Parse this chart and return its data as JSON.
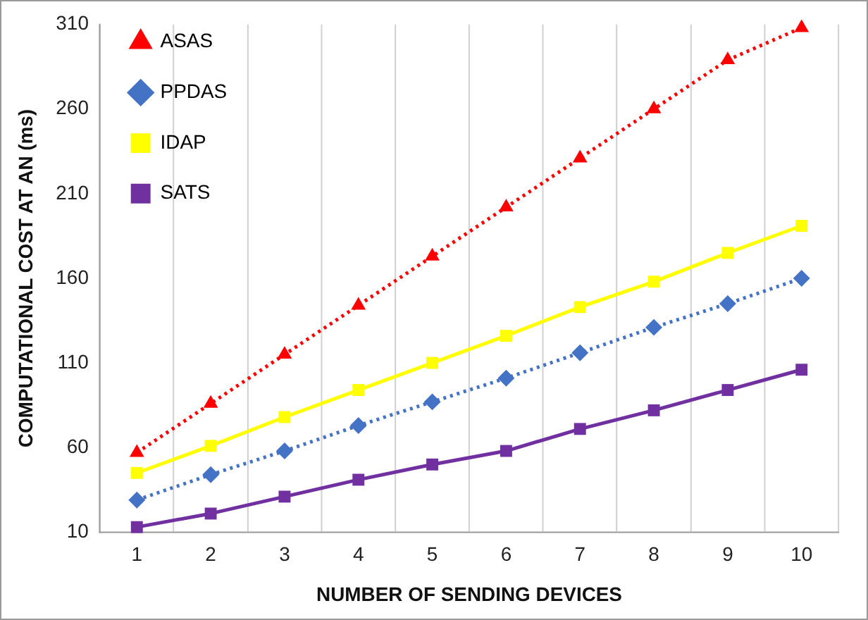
{
  "chart_data": {
    "type": "line",
    "xlabel": "NUMBER OF SENDING DEVICES",
    "ylabel": "COMPUTATIONAL COST AT AN (ms)",
    "categories": [
      "1",
      "2",
      "3",
      "4",
      "5",
      "6",
      "7",
      "8",
      "9",
      "10"
    ],
    "series": [
      {
        "name": "ASAS",
        "color": "#ff0000",
        "marker": "triangle",
        "line_style": "dotted",
        "values": [
          57,
          86,
          115,
          144,
          173,
          202,
          231,
          260,
          289,
          308
        ]
      },
      {
        "name": "PPDAS",
        "color": "#4472c4",
        "marker": "diamond",
        "line_style": "dotted",
        "values": [
          29,
          44,
          58,
          73,
          87,
          101,
          116,
          131,
          145,
          160
        ]
      },
      {
        "name": "IDAP",
        "color": "#ffff00",
        "marker": "square",
        "line_style": "solid",
        "values": [
          45,
          61,
          78,
          94,
          110,
          126,
          143,
          158,
          175,
          191
        ]
      },
      {
        "name": "SATS",
        "color": "#7030a0",
        "marker": "square",
        "line_style": "solid",
        "values": [
          13,
          21,
          31,
          41,
          50,
          58,
          71,
          82,
          94,
          106
        ]
      }
    ],
    "ylim": [
      10,
      310
    ],
    "yticks": [
      10,
      60,
      110,
      160,
      210,
      260,
      310
    ],
    "grid": "x",
    "legend": "top left"
  }
}
